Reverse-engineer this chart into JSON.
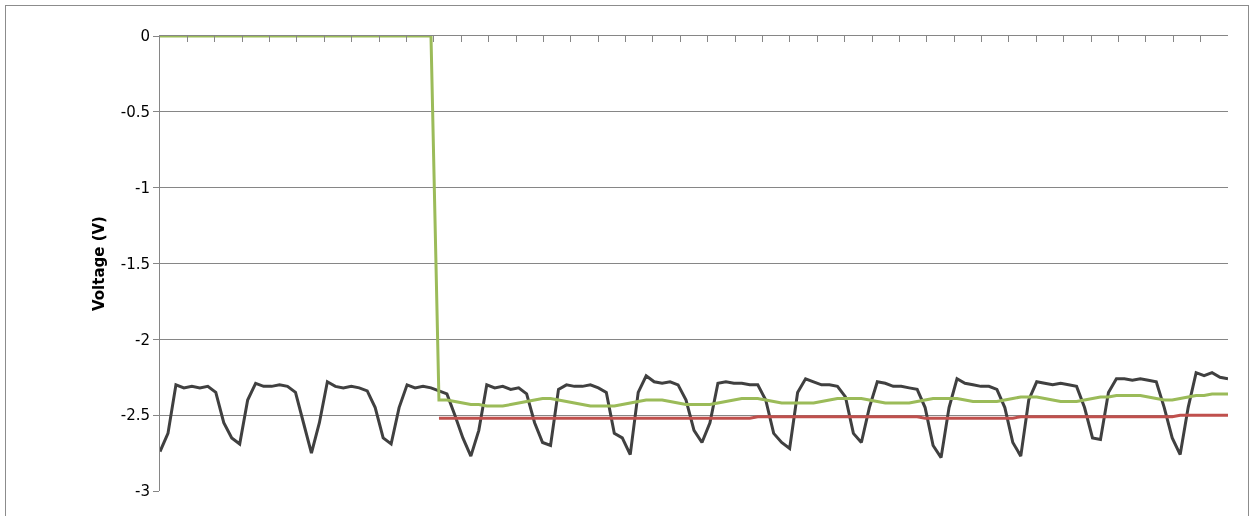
{
  "chart_data": {
    "type": "line",
    "ylabel": "Voltage (V)",
    "ylim": [
      -3,
      0
    ],
    "yticks": [
      -3,
      -2.5,
      -2,
      -1.5,
      -1,
      -0.5,
      0
    ],
    "grid": "y",
    "categories": [
      null,
      null,
      null,
      null,
      null,
      null,
      null,
      null,
      null,
      null,
      null,
      null,
      null,
      null,
      null,
      null,
      null,
      null,
      null,
      null,
      null,
      null,
      null,
      null,
      null,
      null,
      null,
      null,
      null,
      null,
      null,
      null,
      null,
      null,
      null,
      null,
      null,
      null,
      null,
      null,
      null,
      null,
      null,
      null,
      null,
      null,
      null,
      null,
      null,
      null,
      null,
      null,
      null,
      null,
      null,
      null,
      null,
      null,
      null,
      null,
      null,
      null,
      null,
      null,
      null,
      null,
      null,
      null,
      null,
      null,
      null,
      null,
      null,
      null,
      null,
      null,
      null,
      null,
      null,
      null,
      null,
      null,
      null,
      null,
      null,
      null,
      null,
      null,
      null,
      null,
      null,
      null,
      null,
      null,
      null,
      null,
      null,
      null,
      null,
      null,
      null,
      null,
      null,
      null,
      null,
      null,
      null,
      null,
      null,
      null,
      null,
      null,
      null,
      null,
      null,
      null,
      null,
      null,
      null,
      null,
      null,
      null,
      null,
      null,
      null,
      null,
      null,
      null,
      null,
      null,
      null,
      null,
      null,
      null,
      null
    ],
    "series": [
      {
        "color": "#404040",
        "values": [
          -2.74,
          -2.62,
          -2.3,
          -2.32,
          -2.31,
          -2.32,
          -2.31,
          -2.35,
          -2.55,
          -2.65,
          -2.69,
          -2.4,
          -2.29,
          -2.31,
          -2.31,
          -2.3,
          -2.31,
          -2.35,
          -2.55,
          -2.75,
          -2.55,
          -2.28,
          -2.31,
          -2.32,
          -2.31,
          -2.32,
          -2.34,
          -2.45,
          -2.65,
          -2.69,
          -2.45,
          -2.3,
          -2.32,
          -2.31,
          -2.32,
          -2.34,
          -2.36,
          -2.5,
          -2.65,
          -2.77,
          -2.6,
          -2.3,
          -2.32,
          -2.31,
          -2.33,
          -2.32,
          -2.36,
          -2.55,
          -2.68,
          -2.7,
          -2.33,
          -2.3,
          -2.31,
          -2.31,
          -2.3,
          -2.32,
          -2.35,
          -2.62,
          -2.65,
          -2.76,
          -2.35,
          -2.24,
          -2.28,
          -2.29,
          -2.28,
          -2.3,
          -2.4,
          -2.6,
          -2.68,
          -2.55,
          -2.29,
          -2.28,
          -2.29,
          -2.29,
          -2.3,
          -2.3,
          -2.4,
          -2.62,
          -2.68,
          -2.72,
          -2.35,
          -2.26,
          -2.28,
          -2.3,
          -2.3,
          -2.31,
          -2.38,
          -2.62,
          -2.68,
          -2.45,
          -2.28,
          -2.29,
          -2.31,
          -2.31,
          -2.32,
          -2.33,
          -2.45,
          -2.7,
          -2.78,
          -2.45,
          -2.26,
          -2.29,
          -2.3,
          -2.31,
          -2.31,
          -2.33,
          -2.45,
          -2.68,
          -2.77,
          -2.4,
          -2.28,
          -2.29,
          -2.3,
          -2.29,
          -2.3,
          -2.31,
          -2.45,
          -2.65,
          -2.66,
          -2.35,
          -2.26,
          -2.26,
          -2.27,
          -2.26,
          -2.27,
          -2.28,
          -2.45,
          -2.65,
          -2.76,
          -2.45,
          -2.22,
          -2.24,
          -2.22,
          -2.25,
          -2.26
        ]
      },
      {
        "color": "#c0504d",
        "values": [
          null,
          null,
          null,
          null,
          null,
          null,
          null,
          null,
          null,
          null,
          null,
          null,
          null,
          null,
          null,
          null,
          null,
          null,
          null,
          null,
          null,
          null,
          null,
          null,
          null,
          null,
          null,
          null,
          null,
          null,
          null,
          null,
          null,
          null,
          null,
          -2.52,
          -2.52,
          -2.52,
          -2.52,
          -2.52,
          -2.52,
          -2.52,
          -2.52,
          -2.52,
          -2.52,
          -2.52,
          -2.52,
          -2.52,
          -2.52,
          -2.52,
          -2.52,
          -2.52,
          -2.52,
          -2.52,
          -2.52,
          -2.52,
          -2.52,
          -2.52,
          -2.52,
          -2.52,
          -2.52,
          -2.52,
          -2.52,
          -2.52,
          -2.52,
          -2.52,
          -2.52,
          -2.52,
          -2.52,
          -2.52,
          -2.52,
          -2.52,
          -2.52,
          -2.52,
          -2.52,
          -2.51,
          -2.51,
          -2.51,
          -2.51,
          -2.51,
          -2.51,
          -2.51,
          -2.51,
          -2.51,
          -2.51,
          -2.51,
          -2.51,
          -2.51,
          -2.51,
          -2.51,
          -2.51,
          -2.51,
          -2.51,
          -2.51,
          -2.51,
          -2.51,
          -2.52,
          -2.52,
          -2.52,
          -2.52,
          -2.52,
          -2.52,
          -2.52,
          -2.52,
          -2.52,
          -2.52,
          -2.52,
          -2.52,
          -2.51,
          -2.51,
          -2.51,
          -2.51,
          -2.51,
          -2.51,
          -2.51,
          -2.51,
          -2.51,
          -2.51,
          -2.51,
          -2.51,
          -2.51,
          -2.51,
          -2.51,
          -2.51,
          -2.51,
          -2.51,
          -2.51,
          -2.51,
          -2.5,
          -2.5,
          -2.5,
          -2.5,
          -2.5,
          -2.5,
          -2.5
        ]
      },
      {
        "color": "#9bbb59",
        "values": [
          0,
          0,
          0,
          0,
          0,
          0,
          0,
          0,
          0,
          0,
          0,
          0,
          0,
          0,
          0,
          0,
          0,
          0,
          0,
          0,
          0,
          0,
          0,
          0,
          0,
          0,
          0,
          0,
          0,
          0,
          0,
          0,
          0,
          0,
          0,
          -2.4,
          -2.4,
          -2.41,
          -2.42,
          -2.43,
          -2.43,
          -2.44,
          -2.44,
          -2.44,
          -2.43,
          -2.42,
          -2.41,
          -2.4,
          -2.39,
          -2.39,
          -2.4,
          -2.41,
          -2.42,
          -2.43,
          -2.44,
          -2.44,
          -2.44,
          -2.44,
          -2.43,
          -2.42,
          -2.41,
          -2.4,
          -2.4,
          -2.4,
          -2.41,
          -2.42,
          -2.43,
          -2.43,
          -2.43,
          -2.43,
          -2.42,
          -2.41,
          -2.4,
          -2.39,
          -2.39,
          -2.39,
          -2.4,
          -2.41,
          -2.42,
          -2.42,
          -2.42,
          -2.42,
          -2.42,
          -2.41,
          -2.4,
          -2.39,
          -2.39,
          -2.39,
          -2.39,
          -2.4,
          -2.41,
          -2.42,
          -2.42,
          -2.42,
          -2.42,
          -2.41,
          -2.4,
          -2.39,
          -2.39,
          -2.39,
          -2.39,
          -2.4,
          -2.41,
          -2.41,
          -2.41,
          -2.41,
          -2.4,
          -2.39,
          -2.38,
          -2.38,
          -2.38,
          -2.39,
          -2.4,
          -2.41,
          -2.41,
          -2.41,
          -2.4,
          -2.39,
          -2.38,
          -2.38,
          -2.37,
          -2.37,
          -2.37,
          -2.37,
          -2.38,
          -2.39,
          -2.4,
          -2.4,
          -2.39,
          -2.38,
          -2.37,
          -2.37,
          -2.36,
          -2.36,
          -2.36
        ]
      }
    ]
  }
}
